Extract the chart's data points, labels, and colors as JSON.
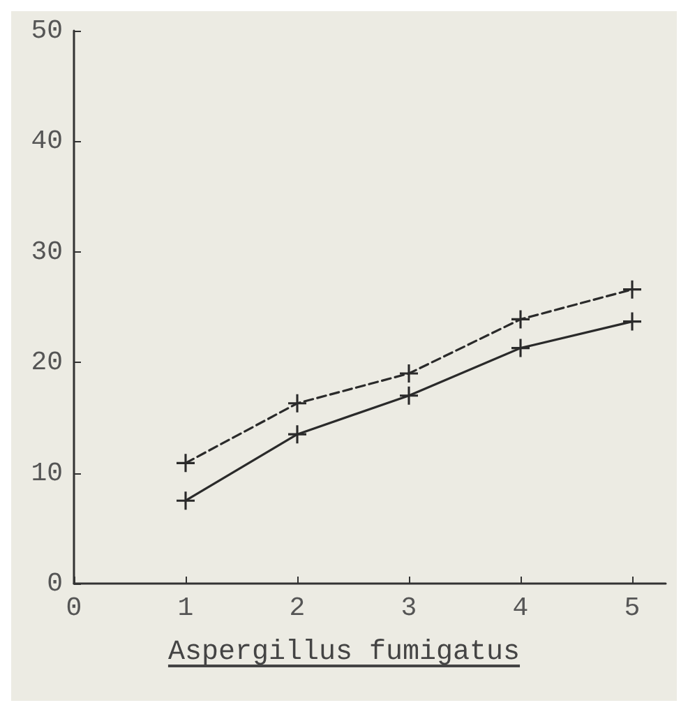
{
  "chart_data": {
    "type": "line",
    "xlabel": "Aspergillus fumigatus",
    "x": [
      1,
      2,
      3,
      4,
      5
    ],
    "series": [
      {
        "color": "#2a2a2a",
        "line_style": "solid",
        "values": [
          7.5,
          13.5,
          17,
          21.3,
          23.7
        ]
      },
      {
        "color": "#2a2a2a",
        "line_style": "dashed",
        "values": [
          10.9,
          16.3,
          19,
          23.9,
          26.6
        ]
      }
    ],
    "xlim": [
      0,
      5.3
    ],
    "xticks": [
      0,
      1,
      2,
      3,
      4,
      5
    ],
    "ylim": [
      0,
      50
    ],
    "yticks": [
      0,
      10,
      20,
      30,
      40,
      50
    ],
    "grid": false,
    "marker": "cross"
  }
}
